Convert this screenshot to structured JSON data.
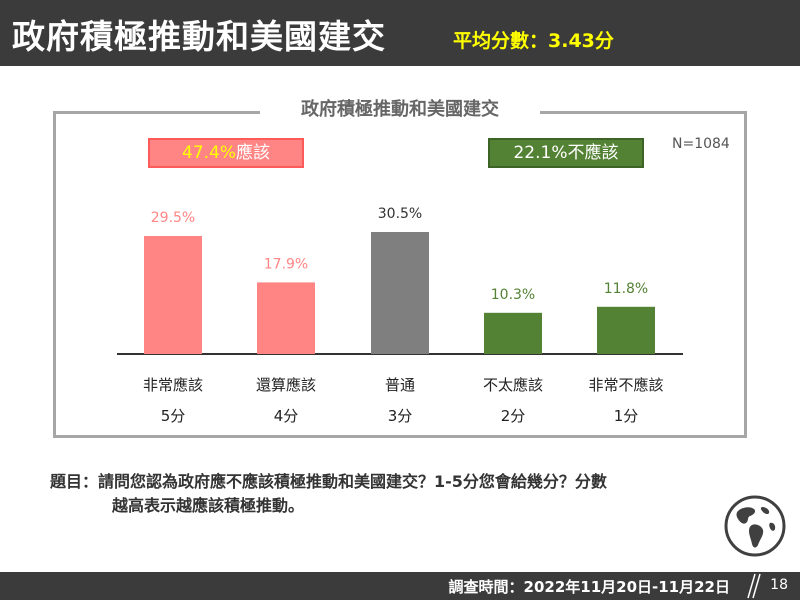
{
  "header": {
    "title": "政府積極推動和美國建交",
    "score": "平均分數：3.43分"
  },
  "frame_title": "政府積極推動和美國建交",
  "badges": {
    "should_pct": "47.4%",
    "should_label": "應該",
    "shouldnot_pct": "22.1%",
    "shouldnot_label": "不應該"
  },
  "sample_size": "N=1084",
  "chart_data": {
    "type": "bar",
    "categories": [
      {
        "label": "非常應該",
        "score": "5分"
      },
      {
        "label": "還算應該",
        "score": "4分"
      },
      {
        "label": "普通",
        "score": "3分"
      },
      {
        "label": "不太應該",
        "score": "2分"
      },
      {
        "label": "非常不應該",
        "score": "1分"
      }
    ],
    "values": [
      29.5,
      17.9,
      30.5,
      10.3,
      11.8
    ],
    "value_labels": [
      "29.5%",
      "17.9%",
      "30.5%",
      "10.3%",
      "11.8%"
    ],
    "colors": [
      "#ff8585",
      "#ff8585",
      "#7f7f7f",
      "#548235",
      "#548235"
    ],
    "label_colors": [
      "#ff8585",
      "#ff8585",
      "#333333",
      "#548235",
      "#548235"
    ],
    "ylim": [
      0,
      35
    ],
    "grid": false,
    "legend": "none"
  },
  "question": {
    "line1": "題目：請問您認為政府應不應該積極推動和美國建交？1-5分您會給幾分？分數",
    "line2": "越高表示越應該積極推動。"
  },
  "footer": {
    "survey_date": "調查時間：2022年11月20日-11月22日",
    "page": "18"
  },
  "icons": {
    "globe": "globe-icon"
  }
}
